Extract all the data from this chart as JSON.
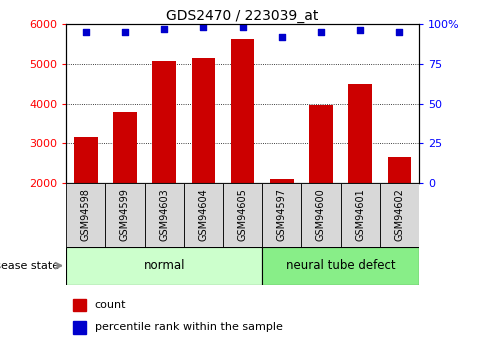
{
  "title": "GDS2470 / 223039_at",
  "samples": [
    "GSM94598",
    "GSM94599",
    "GSM94603",
    "GSM94604",
    "GSM94605",
    "GSM94597",
    "GSM94600",
    "GSM94601",
    "GSM94602"
  ],
  "counts": [
    3150,
    3780,
    5080,
    5150,
    5620,
    2100,
    3950,
    4480,
    2650
  ],
  "percentiles": [
    95,
    95,
    97,
    98,
    98,
    92,
    95,
    96,
    95
  ],
  "ymin": 2000,
  "ymax": 6000,
  "yticks": [
    2000,
    3000,
    4000,
    5000,
    6000
  ],
  "right_yticks": [
    0,
    25,
    50,
    75,
    100
  ],
  "bar_color": "#cc0000",
  "dot_color": "#0000cc",
  "tick_bg_color": "#d8d8d8",
  "normal_color": "#ccffcc",
  "defect_color": "#88ee88",
  "group_labels": [
    "normal",
    "neural tube defect"
  ],
  "legend_count_label": "count",
  "legend_pct_label": "percentile rank within the sample",
  "disease_state_label": "disease state"
}
